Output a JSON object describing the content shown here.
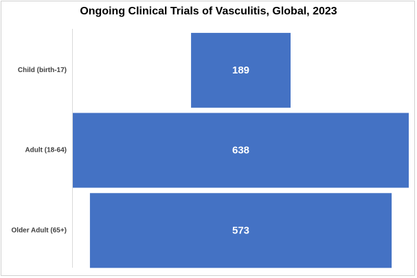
{
  "chart_data": {
    "type": "bar",
    "orientation": "horizontal-funnel",
    "title": "Ongoing Clinical Trials of Vasculitis, Global, 2023",
    "categories": [
      "Child (birth-17)",
      "Adult (18-64)",
      "Older Adult (65+)"
    ],
    "values": [
      189,
      638,
      573
    ],
    "data_labels": [
      "189",
      "638",
      "573"
    ],
    "xlabel": "",
    "ylabel": "",
    "grid": false,
    "legend": "none",
    "bar_color": "#4472C4",
    "label_color": "#FFFFFF"
  }
}
